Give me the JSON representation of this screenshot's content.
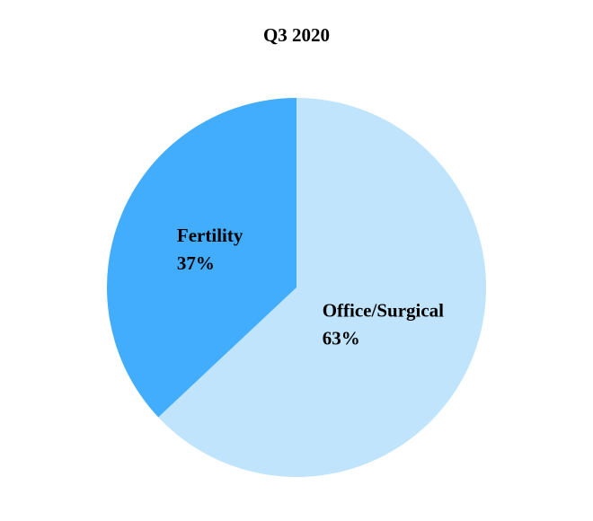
{
  "chart_data": {
    "type": "pie",
    "title": "Q3 2020",
    "categories": [
      "Office/Surgical",
      "Fertility"
    ],
    "values": [
      63,
      37
    ],
    "value_labels": [
      "63%",
      "37%"
    ],
    "colors": [
      "#c0e4fc",
      "#42adfc"
    ]
  }
}
